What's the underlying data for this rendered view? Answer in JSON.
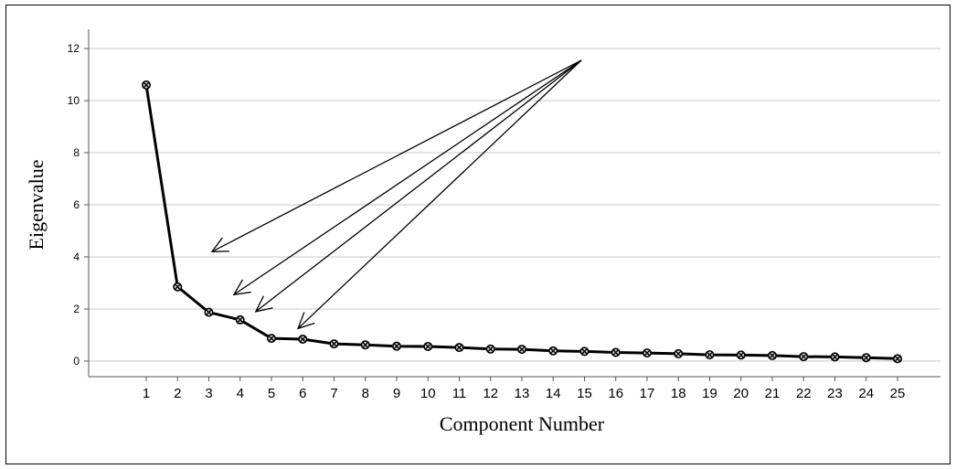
{
  "chart_data": {
    "type": "line",
    "title": "",
    "xlabel": "Component Number",
    "ylabel": "Eigenvalue",
    "x": [
      1,
      2,
      3,
      4,
      5,
      6,
      7,
      8,
      9,
      10,
      11,
      12,
      13,
      14,
      15,
      16,
      17,
      18,
      19,
      20,
      21,
      22,
      23,
      24,
      25
    ],
    "series": [
      {
        "values": [
          10.6,
          2.85,
          1.87,
          1.58,
          0.87,
          0.84,
          0.66,
          0.62,
          0.57,
          0.56,
          0.52,
          0.46,
          0.45,
          0.39,
          0.37,
          0.33,
          0.31,
          0.28,
          0.24,
          0.23,
          0.21,
          0.17,
          0.16,
          0.13,
          0.09
        ],
        "color": "#000000",
        "marker": "circle-x"
      }
    ],
    "ylim": [
      -0.6,
      12.6
    ],
    "yticks": [
      0,
      2,
      4,
      6,
      8,
      10,
      12
    ],
    "grid": "horizontal",
    "legend": "none",
    "annotations": [
      {
        "type": "arrow",
        "from": [
          14.9,
          11.55
        ],
        "to": [
          3.1,
          4.2
        ]
      },
      {
        "type": "arrow",
        "from": [
          14.9,
          11.55
        ],
        "to": [
          3.8,
          2.55
        ]
      },
      {
        "type": "arrow",
        "from": [
          14.9,
          11.55
        ],
        "to": [
          4.5,
          1.9
        ]
      },
      {
        "type": "arrow",
        "from": [
          14.9,
          11.55
        ],
        "to": [
          5.85,
          1.25
        ]
      }
    ]
  }
}
